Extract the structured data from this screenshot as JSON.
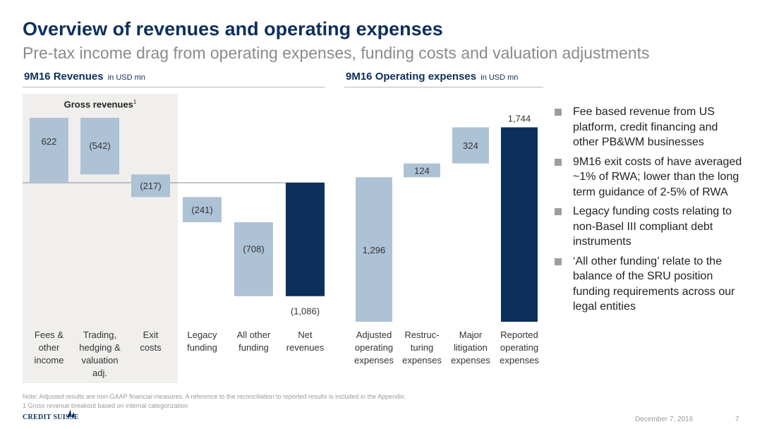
{
  "header": {
    "title": "Overview of revenues and operating expenses",
    "subtitle": "Pre-tax income drag from operating expenses, funding costs and valuation adjustments"
  },
  "left_section": {
    "title": "9M16 Revenues",
    "unit": "in USD mn",
    "gross_label": "Gross revenues",
    "gross_sup": "1"
  },
  "right_section": {
    "title": "9M16 Operating expenses",
    "unit": "in USD mn"
  },
  "colors": {
    "light_bar": "#aec2d6",
    "dark_bar": "#0d2f5c",
    "gross_bg": "#f0efed",
    "title": "#0d2f5c"
  },
  "chart_data": [
    {
      "type": "bar",
      "title": "9M16 Revenues",
      "bars": [
        {
          "category": [
            "Fees &",
            "other",
            "income"
          ],
          "value": 622,
          "label": "622",
          "style": "light",
          "kind": "delta"
        },
        {
          "category": [
            "Trading,",
            "hedging &",
            "valuation",
            "adj."
          ],
          "value": -542,
          "label": "(542)",
          "style": "light",
          "kind": "delta"
        },
        {
          "category": [
            "Exit",
            "costs"
          ],
          "value": -217,
          "label": "(217)",
          "style": "light",
          "kind": "delta"
        },
        {
          "category": [
            "Legacy",
            "funding"
          ],
          "value": -241,
          "label": "(241)",
          "style": "light",
          "kind": "delta"
        },
        {
          "category": [
            "All other",
            "funding"
          ],
          "value": -708,
          "label": "(708)",
          "style": "light",
          "kind": "delta"
        },
        {
          "category": [
            "Net",
            "revenues"
          ],
          "value": -1086,
          "label": "(1,086)",
          "style": "dark",
          "kind": "total"
        }
      ]
    },
    {
      "type": "bar",
      "title": "9M16 Operating expenses",
      "bars": [
        {
          "category": [
            "Adjusted",
            "operating",
            "expenses"
          ],
          "value": 1296,
          "label": "1,296",
          "style": "light",
          "kind": "delta"
        },
        {
          "category": [
            "Restruc-",
            "turing",
            "expenses"
          ],
          "value": 124,
          "label": "124",
          "style": "light",
          "kind": "delta"
        },
        {
          "category": [
            "Major",
            "litigation",
            "expenses"
          ],
          "value": 324,
          "label": "324",
          "style": "light",
          "kind": "delta"
        },
        {
          "category": [
            "Reported",
            "operating",
            "expenses"
          ],
          "value": 1744,
          "label": "1,744",
          "style": "dark",
          "kind": "total"
        }
      ]
    }
  ],
  "bullets": [
    "Fee based revenue from US platform, credit financing and other PB&WM businesses",
    "9M16 exit costs of have averaged ~1% of RWA; lower than the long term guidance of 2-5% of RWA",
    "Legacy funding costs relating to non-Basel III compliant debt instruments",
    "‘All other funding’ relate to the balance of the SRU position funding requirements across our legal entities"
  ],
  "footer": {
    "note": "Note: Adjusted results are non-GAAP financial measures. A reference to the reconciliation to reported results is included in the Appendix.",
    "footnote": "1 Gross revenue breakout based on internal categorization",
    "brand": "CREDIT SUISSE",
    "date": "December 7, 2016",
    "page": "7"
  }
}
